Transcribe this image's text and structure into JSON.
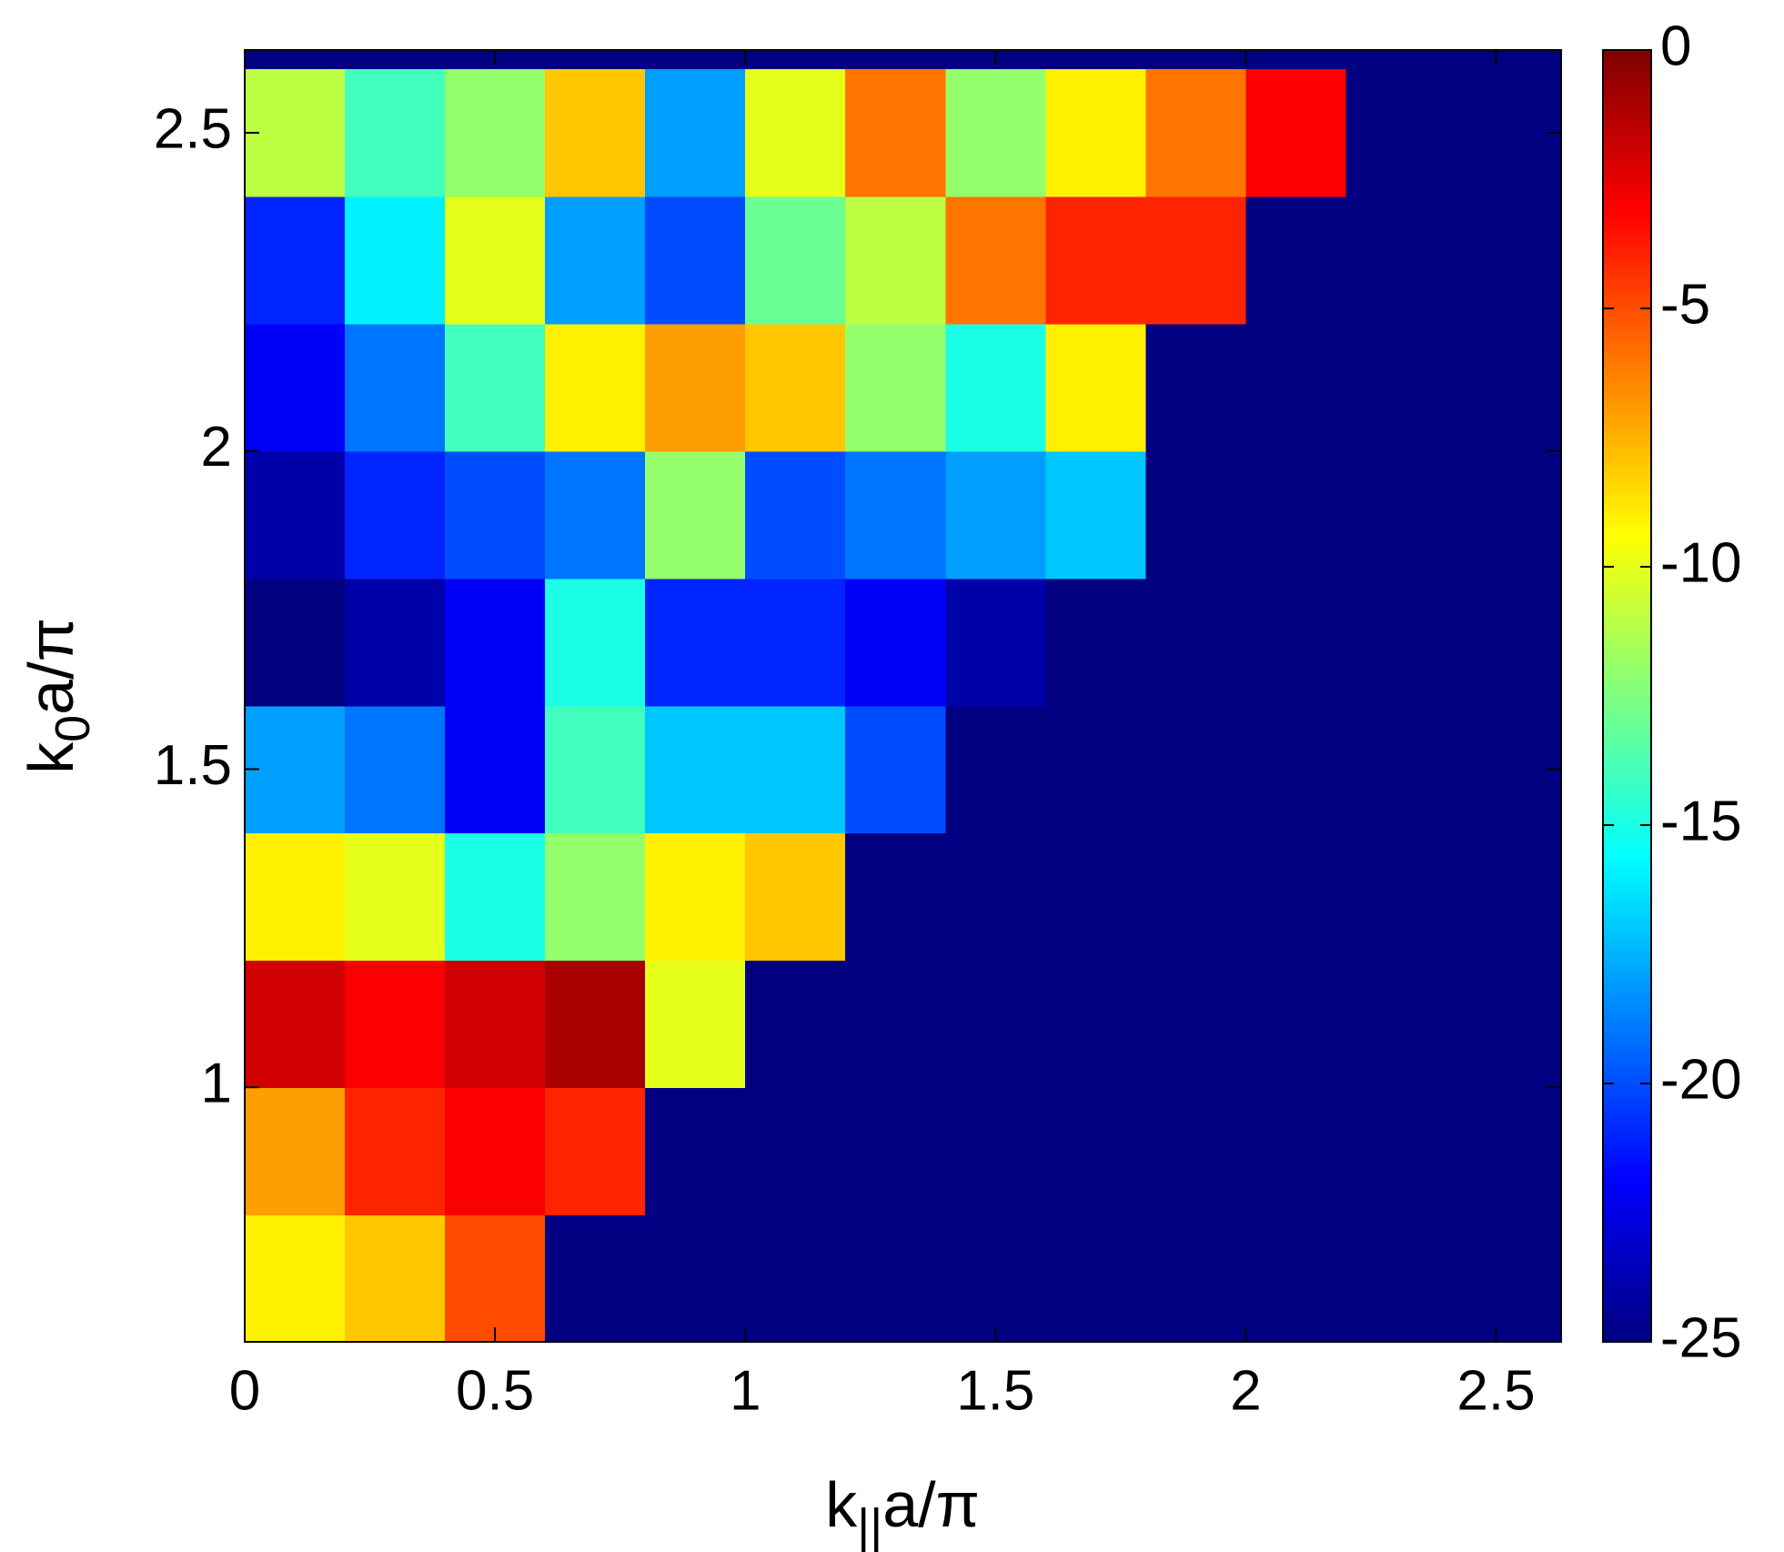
{
  "chart_data": {
    "type": "heatmap",
    "xlabel": {
      "base": "k",
      "sub": "||",
      "rest": "a/π"
    },
    "ylabel": {
      "base": "k",
      "sub": "0",
      "rest": "a/π"
    },
    "colormap": "jet",
    "xlim": [
      0,
      2.63
    ],
    "ylim": [
      0.6,
      2.63
    ],
    "xticks": [
      0,
      0.5,
      1,
      1.5,
      2,
      2.5
    ],
    "yticks": [
      1,
      1.5,
      2,
      2.5
    ],
    "clim": [
      -25,
      0
    ],
    "cticks": [
      0,
      -5,
      -10,
      -15,
      -20,
      -25
    ],
    "x": [
      0.1,
      0.3,
      0.5,
      0.7,
      0.9,
      1.1,
      1.3,
      1.5,
      1.7,
      1.9,
      2.1,
      2.3,
      2.5
    ],
    "y": [
      0.7,
      0.9,
      1.1,
      1.3,
      1.5,
      1.7,
      1.9,
      2.1,
      2.3,
      2.5
    ],
    "z": [
      [
        -9,
        -8,
        -5,
        -25,
        -25,
        -25,
        -25,
        -25,
        -25,
        -25,
        -25,
        -25,
        -25
      ],
      [
        -7,
        -4,
        -3,
        -4,
        -25,
        -25,
        -25,
        -25,
        -25,
        -25,
        -25,
        -25,
        -25
      ],
      [
        -2,
        -3,
        -2,
        -1,
        -10,
        -25,
        -25,
        -25,
        -25,
        -25,
        -25,
        -25,
        -25
      ],
      [
        -9,
        -10,
        -15,
        -12,
        -9,
        -8,
        -25,
        -25,
        -25,
        -25,
        -25,
        -25,
        -25
      ],
      [
        -18,
        -19,
        -22,
        -14,
        -17,
        -17,
        -20,
        -25,
        -25,
        -25,
        -25,
        -25,
        -25
      ],
      [
        -25,
        -24,
        -22,
        -15,
        -21,
        -21,
        -22,
        -24,
        -25,
        -25,
        -25,
        -25,
        -25
      ],
      [
        -24,
        -21,
        -20,
        -19,
        -12,
        -20,
        -19,
        -18,
        -17,
        -25,
        -25,
        -25,
        -25
      ],
      [
        -22,
        -19,
        -14,
        -9,
        -7,
        -8,
        -12,
        -15,
        -9,
        -25,
        -25,
        -25,
        -25
      ],
      [
        -21,
        -16,
        -10,
        -18,
        -20,
        -13,
        -11,
        -6,
        -4,
        -4,
        -25,
        -25,
        -25
      ],
      [
        -11,
        -14,
        -12,
        -8,
        -18,
        -10,
        -6,
        -12,
        -9,
        -6,
        -3,
        -25,
        -25
      ]
    ]
  }
}
